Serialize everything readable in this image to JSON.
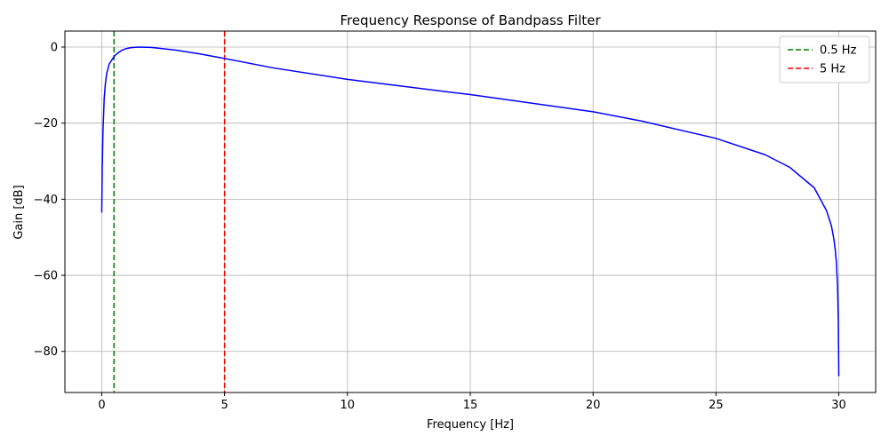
{
  "chart_data": {
    "type": "line",
    "title": "Frequency Response of Bandpass Filter",
    "xlabel": "Frequency [Hz]",
    "ylabel": "Gain [dB]",
    "xlim": [
      -1.5,
      31.5
    ],
    "ylim": [
      -90.8,
      4.2
    ],
    "x_ticks": [
      0,
      5,
      10,
      15,
      20,
      25,
      30
    ],
    "x_tick_labels": [
      "0",
      "5",
      "10",
      "15",
      "20",
      "25",
      "30"
    ],
    "y_ticks": [
      0,
      -20,
      -40,
      -60,
      -80
    ],
    "y_tick_labels": [
      "0",
      "−20",
      "−40",
      "−60",
      "−80"
    ],
    "grid": true,
    "legend_position": "top-right",
    "series": [
      {
        "color": "#0000ff",
        "style": "solid",
        "x": [
          0.0,
          0.02,
          0.05,
          0.1,
          0.15,
          0.2,
          0.3,
          0.4,
          0.5,
          0.6,
          0.8,
          1.0,
          1.2,
          1.5,
          2.0,
          3.0,
          4.0,
          5.0,
          7.0,
          10.0,
          15.0,
          20.0,
          22.0,
          25.0,
          27.0,
          28.0,
          29.0,
          29.5,
          29.7,
          29.8,
          29.85,
          29.9,
          29.95,
          29.98,
          30.0
        ],
        "y": [
          -43.5,
          -32.0,
          -22.0,
          -13.5,
          -9.5,
          -7.0,
          -4.5,
          -3.5,
          -2.5,
          -1.8,
          -0.9,
          -0.4,
          -0.15,
          0.0,
          -0.1,
          -0.8,
          -1.8,
          -3.0,
          -5.5,
          -8.5,
          -12.5,
          -17.0,
          -19.5,
          -24.0,
          -28.3,
          -31.6,
          -37.0,
          -43.0,
          -47.0,
          -50.5,
          -53.0,
          -56.5,
          -63.0,
          -72.0,
          -86.5
        ]
      }
    ],
    "vlines": [
      {
        "x": 0.5,
        "name": "0.5 Hz",
        "color": "#008000",
        "style": "dashed"
      },
      {
        "x": 5,
        "name": "5 Hz",
        "color": "#ff0000",
        "style": "dashed"
      }
    ]
  }
}
